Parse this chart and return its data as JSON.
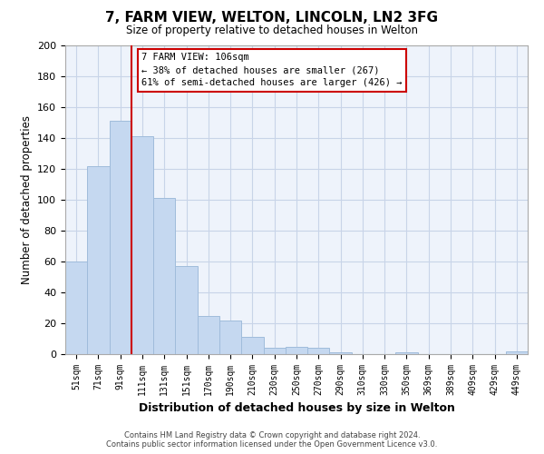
{
  "title": "7, FARM VIEW, WELTON, LINCOLN, LN2 3FG",
  "subtitle": "Size of property relative to detached houses in Welton",
  "xlabel": "Distribution of detached houses by size in Welton",
  "ylabel": "Number of detached properties",
  "bar_labels": [
    "51sqm",
    "71sqm",
    "91sqm",
    "111sqm",
    "131sqm",
    "151sqm",
    "170sqm",
    "190sqm",
    "210sqm",
    "230sqm",
    "250sqm",
    "270sqm",
    "290sqm",
    "310sqm",
    "330sqm",
    "350sqm",
    "369sqm",
    "389sqm",
    "409sqm",
    "429sqm",
    "449sqm"
  ],
  "bar_values": [
    60,
    122,
    151,
    141,
    101,
    57,
    25,
    22,
    11,
    4,
    5,
    4,
    1,
    0,
    0,
    1,
    0,
    0,
    0,
    0,
    2
  ],
  "bar_color": "#c5d8f0",
  "bar_edge_color": "#a0bcdb",
  "vline_color": "#cc0000",
  "ylim": [
    0,
    200
  ],
  "yticks": [
    0,
    20,
    40,
    60,
    80,
    100,
    120,
    140,
    160,
    180,
    200
  ],
  "annotation_title": "7 FARM VIEW: 106sqm",
  "annotation_line1": "← 38% of detached houses are smaller (267)",
  "annotation_line2": "61% of semi-detached houses are larger (426) →",
  "footer_line1": "Contains HM Land Registry data © Crown copyright and database right 2024.",
  "footer_line2": "Contains public sector information licensed under the Open Government Licence v3.0.",
  "background_color": "#ffffff",
  "plot_bg_color": "#eef3fb",
  "grid_color": "#c8d4e8"
}
